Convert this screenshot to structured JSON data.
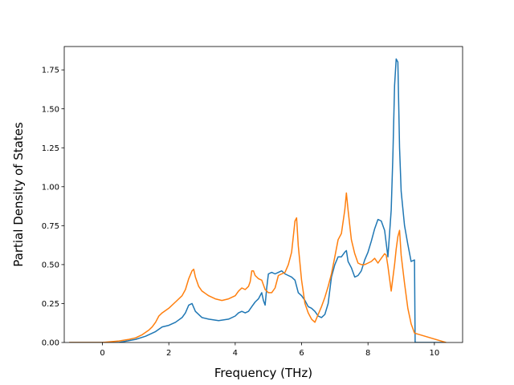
{
  "chart_data": {
    "type": "line",
    "title": "",
    "xlabel": "Frequency (THz)",
    "ylabel": "Partial Density of States",
    "xlim": [
      -1.15,
      10.85
    ],
    "ylim": [
      0.0,
      1.9
    ],
    "xticks": [
      0,
      2,
      4,
      6,
      8,
      10
    ],
    "xtick_labels": [
      "0",
      "2",
      "4",
      "6",
      "8",
      "10"
    ],
    "yticks": [
      0.0,
      0.25,
      0.5,
      0.75,
      1.0,
      1.25,
      1.5,
      1.75
    ],
    "ytick_labels": [
      "0.00",
      "0.25",
      "0.50",
      "0.75",
      "1.00",
      "1.25",
      "1.50",
      "1.75"
    ],
    "grid": false,
    "legend": false,
    "series": [
      {
        "color": "#1f77b4",
        "x": [
          -1.0,
          0.0,
          0.5,
          1.0,
          1.3,
          1.6,
          1.8,
          2.0,
          2.2,
          2.4,
          2.5,
          2.6,
          2.7,
          2.8,
          3.0,
          3.2,
          3.5,
          3.8,
          4.0,
          4.1,
          4.2,
          4.3,
          4.4,
          4.5,
          4.6,
          4.7,
          4.8,
          4.85,
          4.9,
          4.95,
          5.0,
          5.1,
          5.2,
          5.3,
          5.4,
          5.5,
          5.6,
          5.7,
          5.8,
          5.9,
          6.0,
          6.1,
          6.2,
          6.3,
          6.4,
          6.5,
          6.6,
          6.7,
          6.8,
          6.9,
          7.0,
          7.1,
          7.2,
          7.3,
          7.35,
          7.4,
          7.5,
          7.6,
          7.7,
          7.8,
          7.9,
          8.0,
          8.1,
          8.2,
          8.3,
          8.4,
          8.5,
          8.6,
          8.7,
          8.75,
          8.8,
          8.85,
          8.9,
          8.95,
          9.0,
          9.1,
          9.2,
          9.3,
          9.4,
          9.42,
          10.35
        ],
        "y": [
          0.0,
          0.0,
          0.0,
          0.02,
          0.04,
          0.07,
          0.1,
          0.11,
          0.13,
          0.16,
          0.19,
          0.24,
          0.25,
          0.2,
          0.16,
          0.15,
          0.14,
          0.15,
          0.17,
          0.19,
          0.2,
          0.19,
          0.2,
          0.23,
          0.26,
          0.28,
          0.32,
          0.27,
          0.24,
          0.35,
          0.44,
          0.45,
          0.44,
          0.45,
          0.46,
          0.44,
          0.43,
          0.42,
          0.4,
          0.32,
          0.3,
          0.27,
          0.23,
          0.22,
          0.2,
          0.17,
          0.16,
          0.18,
          0.25,
          0.42,
          0.5,
          0.55,
          0.55,
          0.58,
          0.59,
          0.52,
          0.48,
          0.42,
          0.43,
          0.46,
          0.53,
          0.58,
          0.65,
          0.73,
          0.79,
          0.78,
          0.72,
          0.55,
          0.85,
          1.2,
          1.65,
          1.82,
          1.8,
          1.25,
          0.97,
          0.75,
          0.63,
          0.52,
          0.53,
          0.0,
          0.0
        ]
      },
      {
        "color": "#ff7f0e",
        "x": [
          -1.0,
          0.0,
          0.5,
          0.8,
          1.0,
          1.2,
          1.4,
          1.5,
          1.6,
          1.7,
          1.8,
          2.0,
          2.2,
          2.4,
          2.5,
          2.6,
          2.7,
          2.75,
          2.8,
          2.9,
          3.0,
          3.2,
          3.4,
          3.6,
          3.8,
          4.0,
          4.1,
          4.2,
          4.3,
          4.4,
          4.45,
          4.5,
          4.55,
          4.6,
          4.7,
          4.8,
          4.9,
          5.0,
          5.1,
          5.2,
          5.3,
          5.4,
          5.5,
          5.6,
          5.7,
          5.8,
          5.85,
          5.9,
          6.0,
          6.1,
          6.2,
          6.3,
          6.4,
          6.5,
          6.6,
          6.7,
          6.8,
          6.9,
          7.0,
          7.1,
          7.2,
          7.3,
          7.35,
          7.4,
          7.5,
          7.6,
          7.7,
          7.8,
          7.9,
          8.0,
          8.1,
          8.2,
          8.3,
          8.4,
          8.5,
          8.55,
          8.6,
          8.7,
          8.8,
          8.85,
          8.9,
          8.95,
          9.0,
          9.1,
          9.2,
          9.3,
          9.4,
          10.35
        ],
        "y": [
          0.0,
          0.0,
          0.01,
          0.02,
          0.03,
          0.05,
          0.08,
          0.1,
          0.13,
          0.17,
          0.19,
          0.22,
          0.26,
          0.3,
          0.34,
          0.41,
          0.46,
          0.47,
          0.42,
          0.36,
          0.33,
          0.3,
          0.28,
          0.27,
          0.28,
          0.3,
          0.33,
          0.35,
          0.34,
          0.36,
          0.39,
          0.46,
          0.46,
          0.43,
          0.41,
          0.4,
          0.34,
          0.32,
          0.32,
          0.35,
          0.43,
          0.44,
          0.45,
          0.5,
          0.58,
          0.78,
          0.8,
          0.62,
          0.4,
          0.25,
          0.19,
          0.15,
          0.13,
          0.18,
          0.23,
          0.29,
          0.36,
          0.44,
          0.55,
          0.66,
          0.7,
          0.85,
          0.96,
          0.85,
          0.66,
          0.57,
          0.51,
          0.5,
          0.5,
          0.51,
          0.52,
          0.54,
          0.51,
          0.54,
          0.57,
          0.56,
          0.49,
          0.33,
          0.5,
          0.6,
          0.68,
          0.72,
          0.56,
          0.38,
          0.22,
          0.12,
          0.06,
          0.0
        ]
      }
    ]
  }
}
